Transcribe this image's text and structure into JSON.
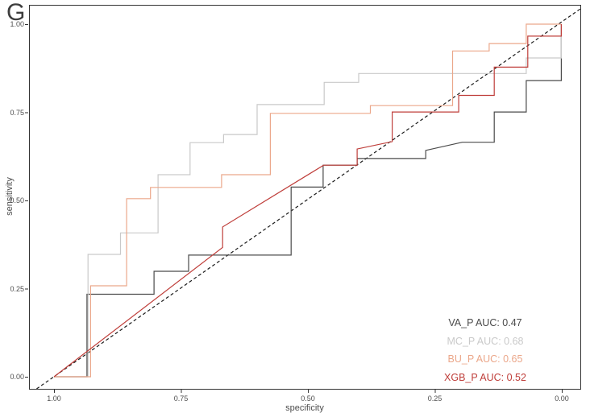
{
  "figure": {
    "panel_label": "G"
  },
  "chart_data": {
    "type": "line",
    "subtype": "roc-curves",
    "title": "",
    "xlabel": "specificity",
    "ylabel": "sensitivity",
    "x_tick_labels": [
      "1.00",
      "0.75",
      "0.50",
      "0.25",
      "0.00"
    ],
    "x_tick_values": [
      1.0,
      0.75,
      0.5,
      0.25,
      0.0
    ],
    "y_tick_labels": [
      "0.00",
      "0.25",
      "0.50",
      "0.75",
      "1.00"
    ],
    "y_tick_values": [
      0.0,
      0.25,
      0.5,
      0.75,
      1.0
    ],
    "x_reversed": true,
    "xlim": [
      1.0,
      0.0
    ],
    "ylim": [
      0.0,
      1.0
    ],
    "grid": false,
    "legend_position": "bottom-right",
    "axis_color": "#333333",
    "tick_label_color": "#4d4d4d",
    "reference_line": {
      "type": "diagonal",
      "style": "dashed",
      "color": "#1a1a1a"
    },
    "series": [
      {
        "name": "VA_P",
        "auc": 0.47,
        "legend_label": "VA_P AUC: 0.47",
        "color": "#4a4a4a",
        "points": [
          [
            1,
            0
          ],
          [
            0.935,
            0
          ],
          [
            0.935,
            0.234
          ],
          [
            0.803,
            0.234
          ],
          [
            0.803,
            0.299
          ],
          [
            0.735,
            0.299
          ],
          [
            0.735,
            0.345
          ],
          [
            0.533,
            0.345
          ],
          [
            0.533,
            0.538
          ],
          [
            0.47,
            0.538
          ],
          [
            0.47,
            0.6
          ],
          [
            0.403,
            0.6
          ],
          [
            0.403,
            0.619
          ],
          [
            0.268,
            0.619
          ],
          [
            0.268,
            0.642
          ],
          [
            0.196,
            0.665
          ],
          [
            0.133,
            0.665
          ],
          [
            0.133,
            0.751
          ],
          [
            0.07,
            0.751
          ],
          [
            0.07,
            0.84
          ],
          [
            0.001,
            0.84
          ],
          [
            0.001,
            1.0
          ]
        ]
      },
      {
        "name": "MC_P",
        "auc": 0.68,
        "legend_label": "MC_P AUC: 0.68",
        "color": "#c9c9c9",
        "points": [
          [
            1,
            0
          ],
          [
            0.933,
            0
          ],
          [
            0.933,
            0.347
          ],
          [
            0.869,
            0.347
          ],
          [
            0.869,
            0.408
          ],
          [
            0.795,
            0.408
          ],
          [
            0.795,
            0.573
          ],
          [
            0.732,
            0.573
          ],
          [
            0.732,
            0.664
          ],
          [
            0.666,
            0.664
          ],
          [
            0.666,
            0.687
          ],
          [
            0.6,
            0.687
          ],
          [
            0.6,
            0.772
          ],
          [
            0.468,
            0.772
          ],
          [
            0.468,
            0.835
          ],
          [
            0.4,
            0.835
          ],
          [
            0.4,
            0.86
          ],
          [
            0.07,
            0.86
          ],
          [
            0.07,
            0.904
          ],
          [
            0.001,
            0.904
          ],
          [
            0.001,
            1.0
          ]
        ]
      },
      {
        "name": "BU_P",
        "auc": 0.65,
        "legend_label": "BU_P AUC: 0.65",
        "color": "#eba78a",
        "points": [
          [
            1,
            0
          ],
          [
            0.928,
            0
          ],
          [
            0.928,
            0.258
          ],
          [
            0.857,
            0.258
          ],
          [
            0.857,
            0.505
          ],
          [
            0.81,
            0.505
          ],
          [
            0.81,
            0.537
          ],
          [
            0.67,
            0.537
          ],
          [
            0.67,
            0.573
          ],
          [
            0.574,
            0.573
          ],
          [
            0.574,
            0.747
          ],
          [
            0.377,
            0.747
          ],
          [
            0.377,
            0.769
          ],
          [
            0.215,
            0.769
          ],
          [
            0.215,
            0.924
          ],
          [
            0.143,
            0.924
          ],
          [
            0.143,
            0.945
          ],
          [
            0.07,
            0.945
          ],
          [
            0.07,
            1.0
          ],
          [
            0.001,
            1.0
          ]
        ]
      },
      {
        "name": "XGB_P",
        "auc": 0.52,
        "legend_label": "XGB_P AUC: 0.52",
        "color": "#bf3e3a",
        "points": [
          [
            1,
            0
          ],
          [
            0.668,
            0.367
          ],
          [
            0.668,
            0.425
          ],
          [
            0.469,
            0.6
          ],
          [
            0.403,
            0.6
          ],
          [
            0.403,
            0.646
          ],
          [
            0.334,
            0.667
          ],
          [
            0.334,
            0.751
          ],
          [
            0.203,
            0.751
          ],
          [
            0.203,
            0.798
          ],
          [
            0.133,
            0.798
          ],
          [
            0.133,
            0.878
          ],
          [
            0.067,
            0.878
          ],
          [
            0.067,
            0.966
          ],
          [
            0.001,
            0.966
          ],
          [
            0.001,
            1.0
          ]
        ]
      }
    ]
  }
}
